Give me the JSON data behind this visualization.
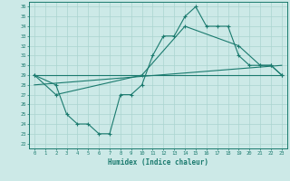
{
  "xlabel": "Humidex (Indice chaleur)",
  "ylabel": "",
  "bg_color": "#cce9e7",
  "line_color": "#1a7a6e",
  "grid_color": "#aad4d0",
  "xlim": [
    -0.5,
    23.5
  ],
  "ylim": [
    21.5,
    36.5
  ],
  "xticks": [
    0,
    1,
    2,
    3,
    4,
    5,
    6,
    7,
    8,
    9,
    10,
    11,
    12,
    13,
    14,
    15,
    16,
    17,
    18,
    19,
    20,
    21,
    22,
    23
  ],
  "yticks": [
    22,
    23,
    24,
    25,
    26,
    27,
    28,
    29,
    30,
    31,
    32,
    33,
    34,
    35,
    36
  ],
  "line1_x": [
    0,
    2,
    3,
    4,
    5,
    6,
    7,
    8,
    9,
    10,
    11,
    12,
    13,
    14,
    15,
    16,
    17,
    18,
    19,
    20,
    21,
    22,
    23
  ],
  "line1_y": [
    29,
    28,
    25,
    24,
    24,
    23,
    23,
    27,
    27,
    28,
    31,
    33,
    33,
    35,
    36,
    34,
    34,
    34,
    31,
    30,
    30,
    30,
    29
  ],
  "line2_x": [
    0,
    2,
    10,
    14,
    19,
    21,
    22,
    23
  ],
  "line2_y": [
    29,
    27,
    29,
    34,
    32,
    30,
    30,
    29
  ],
  "line3_x": [
    0,
    23
  ],
  "line3_y": [
    29,
    29
  ],
  "line4_x": [
    0,
    23
  ],
  "line4_y": [
    28,
    30
  ]
}
